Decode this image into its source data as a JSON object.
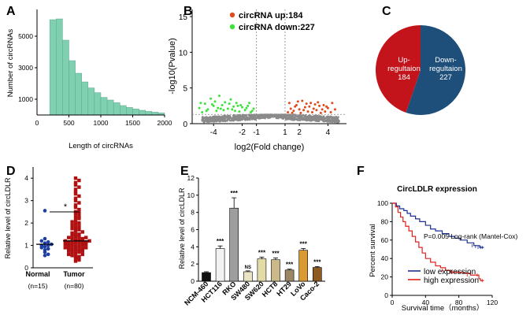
{
  "colors": {
    "hist": "#7fcfb1",
    "up": "#e04a1f",
    "down": "#3ee23e",
    "ns": "#8a8a8a",
    "pie_up": "#c4141b",
    "pie_down": "#1e4e7a",
    "normal": "#1d3fa3",
    "tumor": "#b01010",
    "lowline": "#1a2f8f",
    "highline": "#e0201b"
  },
  "panelA": {
    "label": "A",
    "chart_data": {
      "type": "bar",
      "title": "",
      "xlabel": "Length of circRNAs",
      "ylabel": "Number of circRNAs",
      "xlim": [
        0,
        2000
      ],
      "ylim": [
        0,
        6700
      ],
      "xticks": [
        "500",
        "1000",
        "1500",
        "2000"
      ],
      "yticks": [
        "1000",
        "3000",
        "5000"
      ],
      "bin_width": 100,
      "bins_start": [
        200,
        300,
        400,
        500,
        600,
        700,
        800,
        900,
        1000,
        1100,
        1200,
        1300,
        1400,
        1500,
        1600,
        1700,
        1800,
        1900
      ],
      "values": [
        6050,
        6100,
        4750,
        3450,
        2650,
        2100,
        1720,
        1420,
        1120,
        950,
        780,
        600,
        480,
        380,
        300,
        230,
        180,
        130
      ]
    }
  },
  "panelB": {
    "label": "B",
    "legend_up": "circRNA up:184",
    "legend_down": "circRNA down:227",
    "chart_data": {
      "type": "scatter",
      "xlabel": "log2(Fold change)",
      "ylabel": "-log10(Pvalue)",
      "xlim": [
        -5.5,
        5.3
      ],
      "ylim": [
        0,
        16
      ],
      "xticks": [
        "-4",
        "-2",
        "-1",
        "1",
        "2",
        "4"
      ],
      "xtick_values": [
        -4,
        -2,
        -1,
        1,
        2,
        4
      ],
      "yticks": [
        "0",
        "5",
        "10",
        "15"
      ],
      "threshold_lines_x": [
        -1,
        1
      ],
      "threshold_line_y": 1.3,
      "series": [
        {
          "name": "circRNA up",
          "count": 184,
          "points": [
            [
              1.2,
              1.6
            ],
            [
              1.4,
              2.1
            ],
            [
              1.6,
              1.8
            ],
            [
              1.8,
              2.6
            ],
            [
              2.0,
              2.0
            ],
            [
              2.2,
              3.2
            ],
            [
              2.4,
              2.3
            ],
            [
              2.6,
              1.7
            ],
            [
              2.8,
              2.9
            ],
            [
              3.0,
              2.1
            ],
            [
              3.2,
              1.9
            ],
            [
              3.4,
              2.5
            ],
            [
              3.6,
              2.0
            ],
            [
              3.8,
              1.7
            ],
            [
              4.0,
              2.2
            ],
            [
              4.3,
              2.9
            ],
            [
              4.5,
              2.0
            ],
            [
              1.3,
              2.9
            ],
            [
              1.7,
              2.4
            ],
            [
              2.1,
              1.5
            ],
            [
              2.5,
              2.8
            ],
            [
              2.9,
              1.6
            ],
            [
              3.3,
              3.0
            ],
            [
              3.7,
              2.6
            ],
            [
              4.2,
              1.6
            ],
            [
              1.5,
              1.5
            ],
            [
              1.9,
              3.1
            ],
            [
              2.3,
              1.9
            ],
            [
              2.7,
              2.4
            ],
            [
              3.1,
              2.7
            ],
            [
              3.5,
              1.5
            ],
            [
              3.9,
              2.4
            ]
          ]
        },
        {
          "name": "circRNA down",
          "count": 227,
          "points": [
            [
              -5.0,
              2.2
            ],
            [
              -4.8,
              1.6
            ],
            [
              -4.6,
              2.8
            ],
            [
              -4.4,
              2.0
            ],
            [
              -4.2,
              3.5
            ],
            [
              -4.0,
              2.5
            ],
            [
              -3.8,
              1.8
            ],
            [
              -3.6,
              3.9
            ],
            [
              -3.4,
              2.6
            ],
            [
              -3.2,
              3.0
            ],
            [
              -3.0,
              2.1
            ],
            [
              -2.8,
              3.4
            ],
            [
              -2.6,
              2.4
            ],
            [
              -2.4,
              2.9
            ],
            [
              -2.2,
              1.7
            ],
            [
              -2.0,
              2.3
            ],
            [
              -1.8,
              1.9
            ],
            [
              -1.6,
              2.5
            ],
            [
              -1.4,
              1.6
            ],
            [
              -1.2,
              2.1
            ],
            [
              -4.9,
              2.9
            ],
            [
              -4.5,
              1.8
            ],
            [
              -4.1,
              2.7
            ],
            [
              -3.7,
              2.2
            ],
            [
              -3.3,
              1.9
            ],
            [
              -2.9,
              2.8
            ],
            [
              -2.5,
              1.8
            ],
            [
              -2.1,
              2.6
            ],
            [
              -1.7,
              2.2
            ],
            [
              -1.3,
              1.8
            ],
            [
              -3.9,
              3.1
            ],
            [
              -3.5,
              2.1
            ],
            [
              -2.7,
              2.0
            ],
            [
              -2.3,
              2.5
            ],
            [
              -1.5,
              2.9
            ]
          ]
        },
        {
          "name": "not significant",
          "points": []
        }
      ]
    }
  },
  "panelC": {
    "label": "C",
    "up_text_1": "Up-",
    "up_text_2": "regultaion",
    "up_value": "184",
    "down_text_1": "Down-",
    "down_text_2": "regultaion",
    "down_value": "227",
    "chart_data": {
      "type": "pie",
      "labels": [
        "Up-regultaion",
        "Down-regultaion"
      ],
      "values": [
        184,
        227
      ]
    }
  },
  "panelD": {
    "label": "D",
    "sig": "*",
    "chart_data": {
      "type": "scatter",
      "ylabel": "Relative level of circLDLR",
      "ylim": [
        0,
        4.5
      ],
      "yticks": [
        "0",
        "1",
        "2",
        "3",
        "4"
      ],
      "categories": [
        "Normal",
        "Tumor"
      ],
      "category_n": [
        "(n=15)",
        "(n=80)"
      ],
      "means": [
        1.05,
        1.2
      ],
      "normal_values": [
        0.55,
        0.6,
        0.7,
        0.8,
        0.85,
        0.9,
        0.95,
        1.0,
        1.0,
        1.05,
        1.1,
        1.15,
        1.2,
        1.3,
        2.55
      ],
      "tumor_values": [
        0.3,
        0.35,
        0.4,
        0.45,
        0.5,
        0.5,
        0.55,
        0.6,
        0.6,
        0.65,
        0.7,
        0.7,
        0.75,
        0.8,
        0.8,
        0.85,
        0.85,
        0.9,
        0.9,
        0.95,
        0.95,
        1.0,
        1.0,
        1.0,
        1.05,
        1.05,
        1.1,
        1.1,
        1.1,
        1.15,
        1.15,
        1.2,
        1.2,
        1.25,
        1.25,
        1.3,
        1.3,
        1.35,
        1.4,
        1.4,
        1.45,
        1.5,
        1.5,
        1.55,
        1.6,
        1.65,
        1.7,
        1.75,
        1.8,
        1.85,
        1.9,
        1.95,
        2.0,
        2.05,
        2.1,
        2.2,
        2.25,
        2.3,
        2.4,
        2.45,
        2.5,
        2.6,
        2.7,
        2.8,
        2.9,
        3.0,
        3.1,
        3.2,
        3.3,
        3.4,
        3.5,
        3.6,
        3.7,
        3.8,
        3.9,
        4.0,
        1.15,
        0.9,
        1.35,
        0.75
      ]
    }
  },
  "panelE": {
    "label": "E",
    "chart_data": {
      "type": "bar",
      "ylabel": "Relative level of circLDLR",
      "ylim": [
        0,
        12
      ],
      "yticks": [
        "0",
        "2",
        "4",
        "6",
        "8",
        "10",
        "12"
      ],
      "categories": [
        "NCM-460",
        "HCT116",
        "RKO",
        "SW480",
        "SW620",
        "HCT8",
        "HT29",
        "LoVo",
        "Caco-2"
      ],
      "values": [
        1.0,
        3.8,
        8.5,
        1.1,
        2.6,
        2.5,
        1.3,
        3.6,
        1.6
      ],
      "errors": [
        0.1,
        0.3,
        1.2,
        0.1,
        0.2,
        0.2,
        0.1,
        0.2,
        0.1
      ],
      "significance": [
        "",
        "***",
        "***",
        "NS",
        "***",
        "***",
        "***",
        "***",
        "***"
      ],
      "bar_colors": [
        "#111111",
        "#f2f2f2",
        "#9e9e9e",
        "#ebe4c4",
        "#e2dba6",
        "#cbb98a",
        "#9b8666",
        "#d99a34",
        "#8c5a22"
      ]
    }
  },
  "panelF": {
    "label": "F",
    "title": "CircLDLR expression",
    "annotation": "P=0.005 Log-rank (Mantel-Cox)",
    "legend_low": "low expression",
    "legend_high": "high expression",
    "chart_data": {
      "type": "line",
      "xlabel": "Survival time（months）",
      "ylabel": "Percent survival",
      "xlim": [
        0,
        120
      ],
      "ylim": [
        0,
        100
      ],
      "xticks": [
        "0",
        "40",
        "80",
        "120"
      ],
      "yticks": [
        "0",
        "20",
        "40",
        "60",
        "80",
        "100"
      ],
      "series": [
        {
          "name": "low expression",
          "x": [
            0,
            5,
            9,
            14,
            18,
            22,
            28,
            33,
            40,
            46,
            52,
            60,
            68,
            75,
            82,
            90,
            98,
            105,
            110
          ],
          "y": [
            100,
            97,
            94,
            92,
            89,
            86,
            83,
            80,
            76,
            72,
            70,
            67,
            64,
            62,
            60,
            57,
            54,
            52,
            52
          ]
        },
        {
          "name": "high expression",
          "x": [
            0,
            4,
            7,
            10,
            13,
            16,
            20,
            24,
            28,
            32,
            36,
            40,
            46,
            52,
            58,
            64,
            70,
            78,
            86,
            94,
            100,
            104,
            106,
            110
          ],
          "y": [
            100,
            96,
            90,
            85,
            80,
            75,
            70,
            64,
            58,
            52,
            46,
            40,
            36,
            32,
            30,
            27,
            25,
            25,
            24,
            22,
            22,
            18,
            16,
            16
          ]
        }
      ]
    }
  }
}
